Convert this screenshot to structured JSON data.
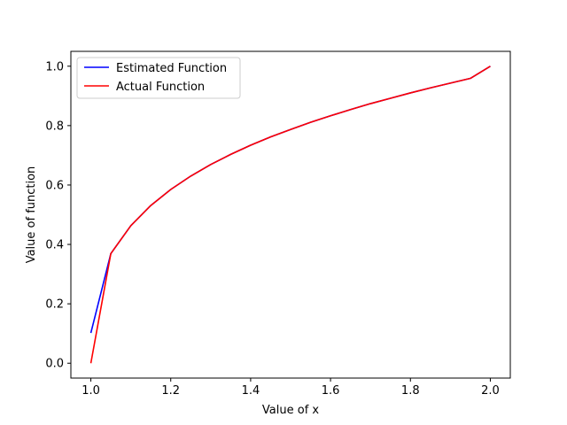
{
  "chart_data": {
    "type": "line",
    "title": "",
    "xlabel": "Value of x",
    "ylabel": "Value of function",
    "xlim": [
      0.95,
      2.05
    ],
    "ylim": [
      -0.05,
      1.05
    ],
    "xticks": [
      1.0,
      1.2,
      1.4,
      1.6,
      1.8,
      2.0
    ],
    "xtick_labels": [
      "1.0",
      "1.2",
      "1.4",
      "1.6",
      "1.8",
      "2.0"
    ],
    "yticks": [
      0.0,
      0.2,
      0.4,
      0.6,
      0.8,
      1.0
    ],
    "ytick_labels": [
      "0.0",
      "0.2",
      "0.4",
      "0.6",
      "0.8",
      "1.0"
    ],
    "grid": false,
    "legend": "top-left",
    "x": [
      1.0,
      1.05,
      1.1,
      1.15,
      1.2,
      1.25,
      1.3,
      1.35,
      1.4,
      1.45,
      1.5,
      1.55,
      1.6,
      1.65,
      1.7,
      1.75,
      1.8,
      1.85,
      1.9,
      1.95,
      2.0
    ],
    "series": [
      {
        "name": "Estimated Function",
        "color": "#0000ff",
        "values": [
          0.102,
          0.369,
          0.463,
          0.531,
          0.585,
          0.63,
          0.669,
          0.703,
          0.734,
          0.762,
          0.787,
          0.811,
          0.833,
          0.854,
          0.874,
          0.892,
          0.91,
          0.927,
          0.943,
          0.959,
          1.0
        ]
      },
      {
        "name": "Actual Function",
        "color": "#ff0000",
        "values": [
          0.0,
          0.369,
          0.463,
          0.531,
          0.585,
          0.63,
          0.669,
          0.703,
          0.734,
          0.762,
          0.787,
          0.811,
          0.833,
          0.854,
          0.874,
          0.892,
          0.91,
          0.927,
          0.943,
          0.959,
          1.0
        ]
      }
    ]
  }
}
